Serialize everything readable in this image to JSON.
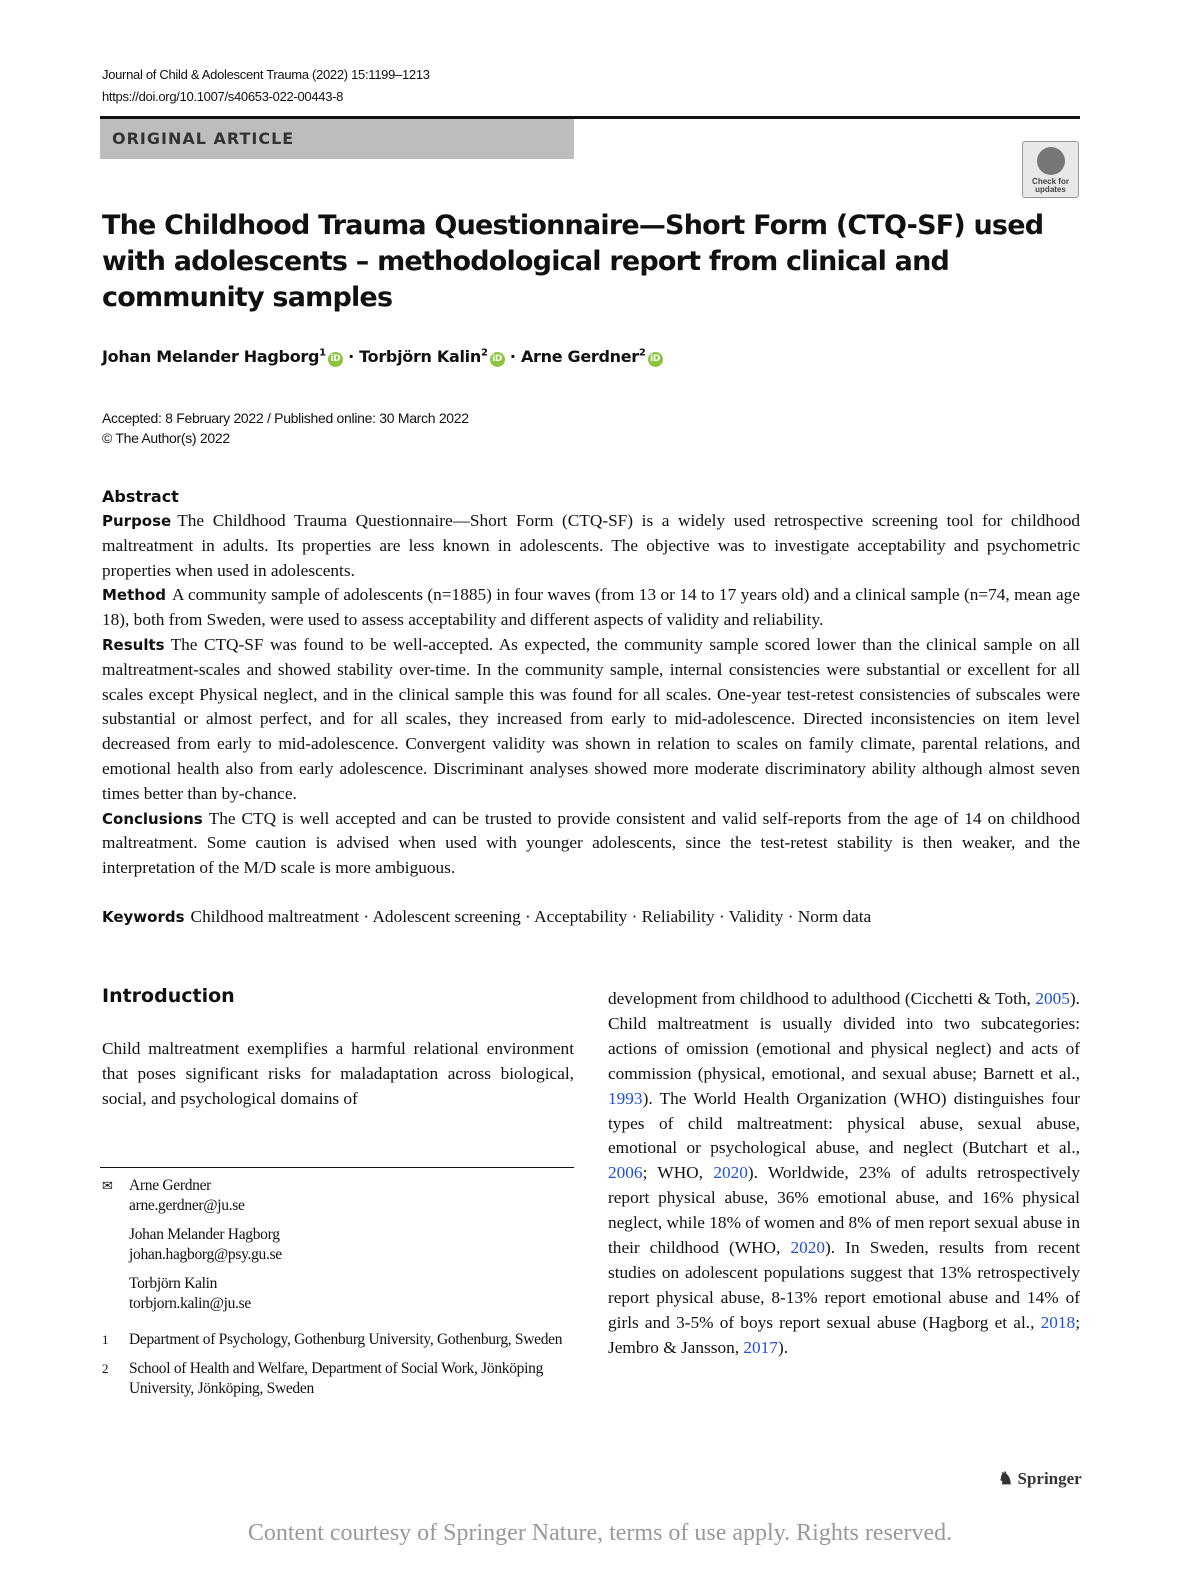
{
  "header": {
    "journal": "Journal of Child & Adolescent Trauma (2022) 15:1199–1213",
    "doi": "https://doi.org/10.1007/s40653-022-00443-8"
  },
  "article_type": "ORIGINAL ARTICLE",
  "check_updates": {
    "line1": "Check for",
    "line2": "updates"
  },
  "title": "The Childhood Trauma Questionnaire—Short Form (CTQ-SF) used with adolescents – methodological report from clinical and community samples",
  "authors": [
    {
      "name": "Johan Melander Hagborg",
      "aff": "1"
    },
    {
      "name": "Torbjörn Kalin",
      "aff": "2"
    },
    {
      "name": "Arne Gerdner",
      "aff": "2"
    }
  ],
  "author_sep": " · ",
  "dates": {
    "line1": "Accepted: 8 February 2022 / Published online: 30 March 2022",
    "line2": "© The Author(s) 2022"
  },
  "abstract": {
    "heading": "Abstract",
    "sections": [
      {
        "label": "Purpose",
        "text": "The Childhood Trauma Questionnaire—Short Form (CTQ-SF) is a widely used retrospective screening tool for childhood maltreatment in adults. Its properties are less known in adolescents. The objective was to investigate acceptability and psychometric properties when used in adolescents."
      },
      {
        "label": "Method",
        "text": "A community sample of adolescents (n=1885) in four waves (from 13 or 14 to 17 years old) and a clinical sample (n=74, mean age 18), both from Sweden, were used to assess acceptability and different aspects of validity and reliability."
      },
      {
        "label": "Results",
        "text": "The CTQ-SF was found to be well-accepted. As expected, the community sample scored lower than the clinical sample on all maltreatment-scales and showed stability over-time. In the community sample, internal consistencies were substantial or excellent for all scales except Physical neglect, and in the clinical sample this was found for all scales. One-year test-retest consistencies of subscales were substantial or almost perfect, and for all scales, they increased from early to mid-adolescence. Directed inconsistencies on item level decreased from early to mid-adolescence. Convergent validity was shown in relation to scales on family climate, parental relations, and emotional health also from early adolescence. Discriminant analyses showed more moderate discriminatory ability although almost seven times better than by-chance."
      },
      {
        "label": "Conclusions",
        "text": "The CTQ is well accepted and can be trusted to provide consistent and valid self-reports from the age of 14 on childhood maltreatment. Some caution is advised when used with younger adolescents, since the test-retest stability is then weaker, and the interpretation of the M/D scale is more ambiguous."
      }
    ]
  },
  "keywords": {
    "label": "Keywords",
    "text": "Childhood maltreatment · Adolescent screening · Acceptability · Reliability · Validity · Norm data"
  },
  "introduction": {
    "heading": "Introduction",
    "left_text": "Child maltreatment exemplifies a harmful relational environment that poses significant risks for maladaptation across biological, social, and psychological domains of",
    "right_parts": [
      {
        "t": "development from childhood to adulthood (Cicchetti & Toth, "
      },
      {
        "t": "2005",
        "link": true
      },
      {
        "t": "). Child maltreatment is usually divided into two subcategories: actions of omission (emotional and physical neglect) and acts of commission (physical, emotional, and sexual abuse; Barnett et al., "
      },
      {
        "t": "1993",
        "link": true
      },
      {
        "t": "). The World Health Organization (WHO) distinguishes four types of child maltreatment: physical abuse, sexual abuse, emotional or psychological abuse, and neglect (Butchart et al., "
      },
      {
        "t": "2006",
        "link": true
      },
      {
        "t": "; WHO, "
      },
      {
        "t": "2020",
        "link": true
      },
      {
        "t": "). Worldwide, 23% of adults retrospectively report physical abuse, 36% emotional abuse, and 16% physical neglect, while 18% of women and 8% of men report sexual abuse in their childhood (WHO, "
      },
      {
        "t": "2020",
        "link": true
      },
      {
        "t": "). In Sweden, results from recent studies on adolescent populations suggest that 13% retrospectively report physical abuse, 8-13% report emotional abuse and 14% of girls and 3-5% of boys report sexual abuse (Hagborg et al., "
      },
      {
        "t": "2018",
        "link": true
      },
      {
        "t": "; Jembro & Jansson, "
      },
      {
        "t": "2017",
        "link": true
      },
      {
        "t": ")."
      }
    ]
  },
  "contacts": [
    {
      "name": "Arne Gerdner",
      "email": "arne.gerdner@ju.se"
    },
    {
      "name": "Johan Melander Hagborg",
      "email": "johan.hagborg@psy.gu.se"
    },
    {
      "name": "Torbjörn Kalin",
      "email": "torbjorn.kalin@ju.se"
    }
  ],
  "affiliations": [
    {
      "num": "1",
      "text": "Department of Psychology, Gothenburg University, Gothenburg, Sweden"
    },
    {
      "num": "2",
      "text": "School of Health and Welfare, Department of Social Work, Jönköping University, Jönköping, Sweden"
    }
  ],
  "publisher": "Springer",
  "footer": "Content courtesy of Springer Nature, terms of use apply. Rights reserved.",
  "colors": {
    "link": "#1f4fd8",
    "orcid": "#8bc53f",
    "band": "#bdbdbd"
  }
}
